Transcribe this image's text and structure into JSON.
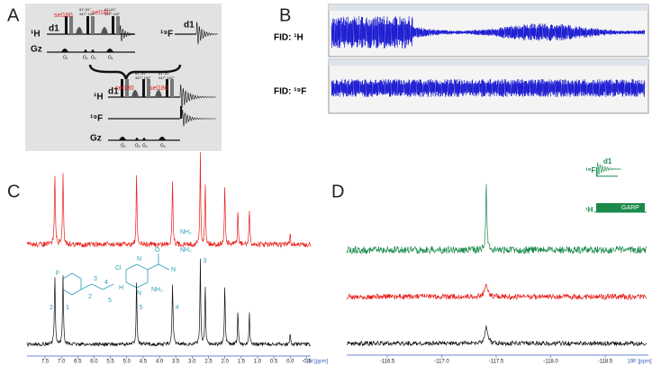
{
  "panels": {
    "a": {
      "label": "A",
      "h": "¹H",
      "d1": "d1",
      "sel180_a": "sel180",
      "sel180_b": "sel180",
      "angles": [
        "81°,81°",
        "347°,152°",
        "81°,81°",
        "347°,152°"
      ],
      "gz": "Gz",
      "gradients_top": [
        "G₁",
        "G₂",
        "G₃",
        "G₁"
      ],
      "f": "¹⁹F",
      "f_d1": "d1",
      "bottom": {
        "h": "¹H",
        "d1": "d1",
        "sel180_a": "sel180",
        "sel180_b": "sel180",
        "angles": [
          "81°,81°",
          "347°,152°",
          "81°,81°",
          "347°,152°"
        ],
        "f": "¹⁹F",
        "gz": "Gz",
        "gradients": [
          "G₁",
          "G₂",
          "G₃",
          "G₄"
        ]
      }
    },
    "b": {
      "label": "B",
      "fid_h": "FID: ¹H",
      "fid_f": "FID: ¹⁹F"
    },
    "c": {
      "label": "C",
      "ticks": [
        "7.5",
        "7.0",
        "6.5",
        "6.0",
        "5.5",
        "5.0",
        "4.5",
        "4.0",
        "3.5",
        "3.0",
        "2.5",
        "2.0",
        "1.5",
        "1.0",
        "0.5",
        "0.0",
        "-0.5"
      ],
      "axis_unit": "1H [ppm]",
      "peaks": [
        "2",
        "1",
        "5",
        "4",
        "3"
      ],
      "molecule": {
        "f": "F",
        "cl": "Cl",
        "n1": "N",
        "n2": "N",
        "hn": "H",
        "nh2_a": "NH₂",
        "nh2_b": "NH₂",
        "nh2_c": "NH₂",
        "o": "O",
        "n3": "N",
        "pos": [
          "2",
          "3",
          "4",
          "5"
        ]
      }
    },
    "d": {
      "label": "D",
      "ticks": [
        "-116.5",
        "-117.0",
        "-117.5",
        "-118.0",
        "-118.5"
      ],
      "axis_unit": "19F [ppm]",
      "inset": {
        "f": "¹⁹F",
        "d1": "d1",
        "h": "¹H",
        "garp": "GARP"
      }
    }
  }
}
